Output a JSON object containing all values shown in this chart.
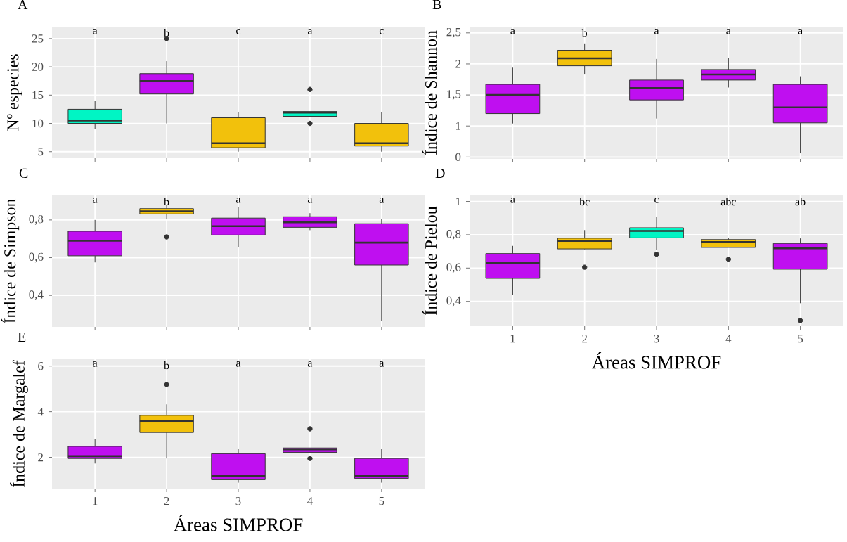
{
  "chart_data": [
    {
      "type": "box",
      "title": "A",
      "ylabel": "Nº especies",
      "categories": [
        "1",
        "2",
        "3",
        "4",
        "5"
      ],
      "boxes": [
        {
          "low": 9,
          "q1": 10,
          "median": 10.5,
          "q3": 12.5,
          "high": 14
        },
        {
          "low": 10,
          "q1": 15.2,
          "median": 17.5,
          "q3": 18.8,
          "high": 21,
          "outliers": [
            25
          ]
        },
        {
          "low": 5,
          "q1": 5.7,
          "median": 6.5,
          "q3": 11,
          "high": 12
        },
        {
          "low": 11.2,
          "q1": 11.25,
          "median": 11.9,
          "q3": 12.1,
          "high": 12.1,
          "outliers": [
            16,
            10
          ]
        },
        {
          "low": 5,
          "q1": 6,
          "median": 6.5,
          "q3": 10,
          "high": 12
        }
      ],
      "colors": [
        "#00f5c4",
        "#bf0ff0",
        "#f2c10c",
        "#00f5c4",
        "#f2c10c"
      ],
      "ylim": [
        3.85,
        27.1
      ],
      "yticks": [
        5,
        10,
        15,
        20,
        25
      ],
      "tick_labels": "y",
      "grid": true,
      "annotations": [
        "a",
        "b",
        "c",
        "a",
        "c"
      ]
    },
    {
      "type": "box",
      "title": "B",
      "ylabel": "Índice de Shannon",
      "categories": [
        "1",
        "2",
        "3",
        "4",
        "5"
      ],
      "boxes": [
        {
          "low": 1.04,
          "q1": 1.2,
          "median": 1.5,
          "q3": 1.67,
          "high": 1.94
        },
        {
          "low": 1.84,
          "q1": 1.97,
          "median": 2.09,
          "q3": 2.22,
          "high": 2.33
        },
        {
          "low": 1.12,
          "q1": 1.42,
          "median": 1.61,
          "q3": 1.74,
          "high": 2.08
        },
        {
          "low": 1.62,
          "q1": 1.74,
          "median": 1.83,
          "q3": 1.91,
          "high": 2.1
        },
        {
          "low": 0.56,
          "q1": 1.05,
          "median": 1.3,
          "q3": 1.67,
          "high": 1.8
        }
      ],
      "colors": [
        "#bf0ff0",
        "#f2c10c",
        "#bf0ff0",
        "#bf0ff0",
        "#bf0ff0"
      ],
      "ylim": [
        0.47,
        2.6
      ],
      "yticks": [
        {
          "value": 0.5,
          "label": "0"
        },
        1,
        {
          "value": 1.5,
          "label": "1,5"
        },
        2,
        {
          "value": 2.5,
          "label": "2,5"
        }
      ],
      "tick_labels": "y",
      "grid": true,
      "annotations": [
        "a",
        "b",
        "a",
        "a",
        "a"
      ]
    },
    {
      "type": "box",
      "title": "C",
      "ylabel": "Índice de Simpson",
      "categories": [
        "1",
        "2",
        "3",
        "4",
        "5"
      ],
      "boxes": [
        {
          "low": 0.575,
          "q1": 0.61,
          "median": 0.69,
          "q3": 0.74,
          "high": 0.8
        },
        {
          "low": 0.805,
          "q1": 0.832,
          "median": 0.846,
          "q3": 0.86,
          "high": 0.88,
          "outliers": [
            0.71
          ]
        },
        {
          "low": 0.655,
          "q1": 0.72,
          "median": 0.767,
          "q3": 0.81,
          "high": 0.867
        },
        {
          "low": 0.746,
          "q1": 0.761,
          "median": 0.788,
          "q3": 0.817,
          "high": 0.836
        },
        {
          "low": 0.265,
          "q1": 0.561,
          "median": 0.68,
          "q3": 0.78,
          "high": 0.806
        }
      ],
      "colors": [
        "#bf0ff0",
        "#f2c10c",
        "#bf0ff0",
        "#bf0ff0",
        "#bf0ff0"
      ],
      "ylim": [
        0.233,
        0.93
      ],
      "yticks": [
        {
          "value": 0.4,
          "label": "0,4"
        },
        {
          "value": 0.6,
          "label": "0,6"
        },
        {
          "value": 0.8,
          "label": "0,8"
        }
      ],
      "tick_labels": "y",
      "grid": true,
      "annotations": [
        "a",
        "b",
        "a",
        "a",
        "a"
      ]
    },
    {
      "type": "box",
      "title": "D",
      "ylabel": "Índice de Pielou",
      "xlabel": "Áreas SIMPROF",
      "categories": [
        "1",
        "2",
        "3",
        "4",
        "5"
      ],
      "boxes": [
        {
          "low": 0.437,
          "q1": 0.538,
          "median": 0.63,
          "q3": 0.687,
          "high": 0.733
        },
        {
          "low": 0.713,
          "q1": 0.715,
          "median": 0.763,
          "q3": 0.779,
          "high": 0.828,
          "outliers": [
            0.605
          ]
        },
        {
          "low": 0.708,
          "q1": 0.781,
          "median": 0.823,
          "q3": 0.842,
          "high": 0.908,
          "outliers": [
            0.683
          ]
        },
        {
          "low": 0.724,
          "q1": 0.724,
          "median": 0.756,
          "q3": 0.771,
          "high": 0.779,
          "outliers": [
            0.653
          ]
        },
        {
          "low": 0.389,
          "q1": 0.593,
          "median": 0.719,
          "q3": 0.748,
          "high": 0.778,
          "outliers": [
            0.285
          ]
        }
      ],
      "colors": [
        "#bf0ff0",
        "#f2c10c",
        "#00f5c4",
        "#f2c10c",
        "#bf0ff0"
      ],
      "ylim": [
        0.251,
        1.036
      ],
      "yticks": [
        {
          "value": 0.4,
          "label": "0,4"
        },
        {
          "value": 0.6,
          "label": "0,6"
        },
        {
          "value": 0.8,
          "label": "0,8"
        },
        1
      ],
      "grid": true,
      "annotations": [
        "a",
        "bc",
        "c",
        "abc",
        "ab"
      ]
    },
    {
      "type": "box",
      "title": "E",
      "ylabel": "Índice de Margalef",
      "xlabel": "Áreas SIMPROF",
      "categories": [
        "1",
        "2",
        "3",
        "4",
        "5"
      ],
      "boxes": [
        {
          "low": 1.73,
          "q1": 1.95,
          "median": 2.05,
          "q3": 2.48,
          "high": 2.81
        },
        {
          "low": 1.95,
          "q1": 3.09,
          "median": 3.58,
          "q3": 3.84,
          "high": 4.32,
          "outliers": [
            5.19
          ]
        },
        {
          "low": 0.89,
          "q1": 1.02,
          "median": 1.18,
          "q3": 2.16,
          "high": 2.36
        },
        {
          "low": 2.22,
          "q1": 2.22,
          "median": 2.35,
          "q3": 2.41,
          "high": 2.41,
          "outliers": [
            3.25,
            1.95
          ]
        },
        {
          "low": 0.89,
          "q1": 1.07,
          "median": 1.19,
          "q3": 1.95,
          "high": 2.36
        }
      ],
      "colors": [
        "#bf0ff0",
        "#f2c10c",
        "#bf0ff0",
        "#bf0ff0",
        "#bf0ff0"
      ],
      "ylim": [
        0.63,
        6.3
      ],
      "yticks": [
        2,
        4,
        6
      ],
      "grid": true,
      "annotations": [
        "a",
        "b",
        "a",
        "a",
        "a"
      ]
    }
  ]
}
